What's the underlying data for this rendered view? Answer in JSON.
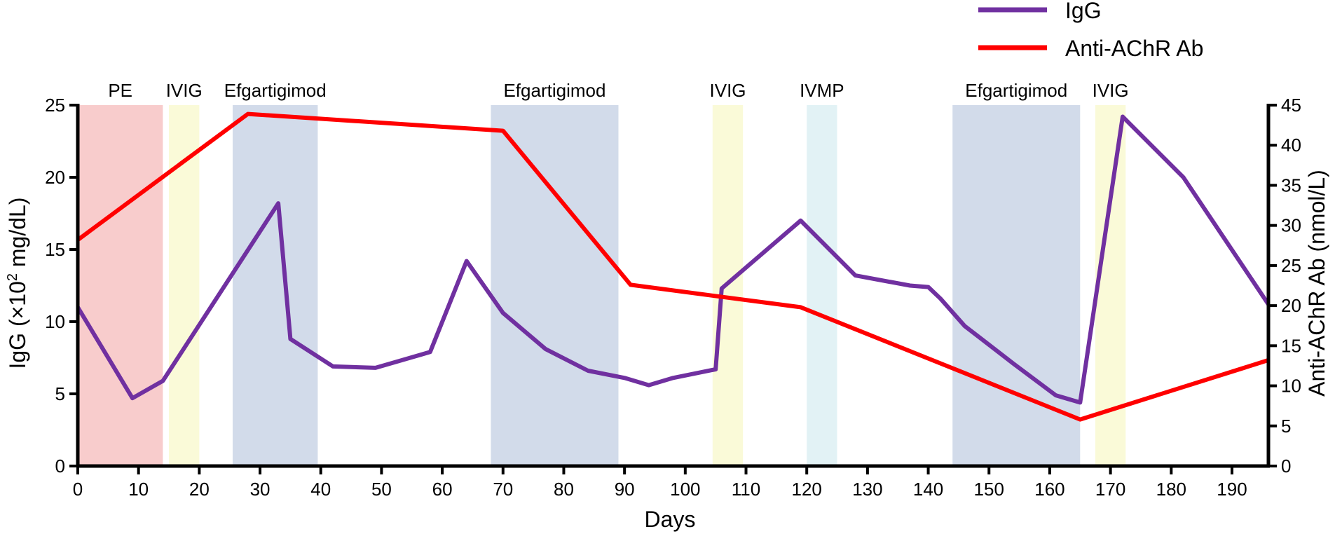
{
  "chart_data": {
    "type": "line",
    "xlabel": "Days",
    "xlim": [
      0,
      196
    ],
    "xticks": [
      "0",
      "10",
      "20",
      "30",
      "40",
      "50",
      "60",
      "70",
      "80",
      "90",
      "100",
      "110",
      "120",
      "130",
      "140",
      "150",
      "160",
      "170",
      "180",
      "190"
    ],
    "ylabel_left_prefix": "IgG (×10",
    "ylabel_left_exp": "2",
    "ylabel_left_suffix": " mg/dL)",
    "ylim_left": [
      0,
      25
    ],
    "yticks_left": [
      "0",
      "5",
      "10",
      "15",
      "20",
      "25"
    ],
    "ylabel_right": "Anti-AChR Ab (nmol/L)",
    "ylim_right": [
      0,
      45
    ],
    "yticks_right": [
      "0",
      "5",
      "10",
      "15",
      "20",
      "25",
      "30",
      "35",
      "40",
      "45"
    ],
    "legend": [
      {
        "name": "IgG",
        "color": "#7030a0"
      },
      {
        "name": "Anti-AChR Ab",
        "color": "#ff0000"
      }
    ],
    "treatment_periods": [
      {
        "label": "PE",
        "start": 0,
        "end": 14,
        "color": "#f8cccc"
      },
      {
        "label": "IVIG",
        "start": 15,
        "end": 20,
        "color": "#fafad8"
      },
      {
        "label": "Efgartigimod",
        "start": 25.5,
        "end": 39.5,
        "color": "#d2dbea"
      },
      {
        "label": "Efgartigimod",
        "start": 68,
        "end": 89,
        "color": "#d2dbea"
      },
      {
        "label": "IVIG",
        "start": 104.5,
        "end": 109.5,
        "color": "#fafad8"
      },
      {
        "label": "IVMP",
        "start": 120,
        "end": 125,
        "color": "#e2f2f5"
      },
      {
        "label": "Efgartigimod",
        "start": 144,
        "end": 165,
        "color": "#d2dbea"
      },
      {
        "label": "IVIG",
        "start": 167.5,
        "end": 172.5,
        "color": "#fafad8"
      }
    ],
    "series": [
      {
        "name": "IgG",
        "axis": "left",
        "color": "#7030a0",
        "x": [
          0,
          9,
          14,
          33,
          35,
          42,
          49,
          58,
          64,
          70,
          77,
          84,
          90,
          94,
          98,
          105,
          106,
          119,
          128,
          137,
          140,
          142,
          146,
          154,
          161,
          165,
          172,
          182,
          196
        ],
        "y": [
          11.0,
          4.7,
          5.9,
          18.2,
          8.8,
          6.9,
          6.8,
          7.9,
          14.2,
          10.6,
          8.1,
          6.6,
          6.1,
          5.6,
          6.1,
          6.7,
          12.3,
          17.0,
          13.2,
          12.5,
          12.4,
          11.6,
          9.7,
          7.1,
          4.9,
          4.4,
          24.2,
          20.0,
          11.2
        ]
      },
      {
        "name": "Anti-AChR Ab",
        "axis": "right",
        "color": "#ff0000",
        "x": [
          0,
          28,
          70,
          91,
          119,
          165,
          196
        ],
        "y": [
          28.2,
          43.9,
          41.8,
          22.6,
          19.8,
          5.8,
          13.2
        ]
      }
    ]
  }
}
